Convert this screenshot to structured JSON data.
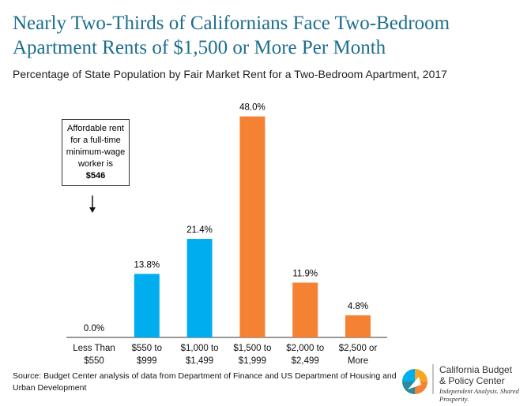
{
  "chart_data": {
    "type": "bar",
    "title": "Nearly Two-Thirds of Californians Face Two-Bedroom\nApartment Rents of $1,500 or More Per Month",
    "subtitle": "Percentage of State Population by Fair Market Rent for a Two-Bedroom Apartment, 2017",
    "categories": [
      "Less Than\n$550",
      "$550 to\n$999",
      "$1,000 to\n$1,499",
      "$1,500 to\n$1,999",
      "$2,000 to\n$2,499",
      "$2,500 or\nMore"
    ],
    "values": [
      0.0,
      13.8,
      21.4,
      48.0,
      11.9,
      4.8
    ],
    "value_labels": [
      "0.0%",
      "13.8%",
      "21.4%",
      "48.0%",
      "11.9%",
      "4.8%"
    ],
    "colors": [
      "#00aeef",
      "#00aeef",
      "#00aeef",
      "#f58233",
      "#f58233",
      "#f58233"
    ],
    "ylim": [
      0,
      50
    ],
    "annotation": {
      "text": "Affordable rent\nfor a full-time\nminimum-wage\nworker is",
      "value": "$546"
    },
    "source": "Source: Budget Center analysis of data from Department of Finance and US Department of Housing and\nUrban Development",
    "logo": {
      "name": "California Budget\n& Policy Center",
      "tagline": "Independent Analysis. Shared Prosperity."
    }
  }
}
